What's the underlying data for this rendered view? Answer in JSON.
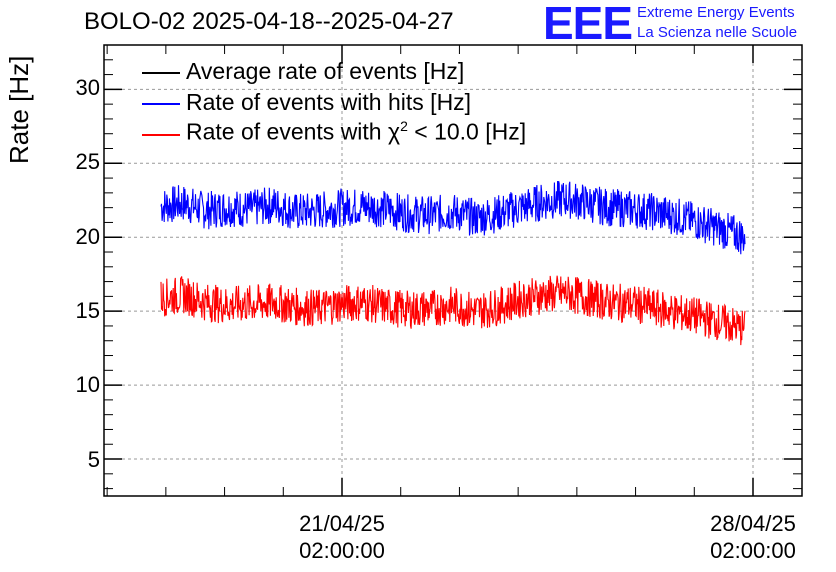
{
  "chart_data": {
    "type": "line",
    "title": "BOLO-02 2025-04-18--2025-04-27",
    "ylabel": "Rate [Hz]",
    "xlabel": "",
    "ylim": [
      2.5,
      33
    ],
    "y_ticks": [
      5,
      10,
      15,
      20,
      25,
      30
    ],
    "y_tick_labels": [
      "5",
      "10",
      "15",
      "20",
      "25",
      "30"
    ],
    "x_tick_labels": [
      {
        "date": "21/04/25",
        "time": "02:00:00"
      },
      {
        "date": "28/04/25",
        "time": "02:00:00"
      }
    ],
    "grid": true,
    "legend_position": "top-left",
    "series": [
      {
        "name": "Average rate of events [Hz]",
        "color": "#000000",
        "values": []
      },
      {
        "name": "Rate of events with hits [Hz]",
        "color": "#0000ff",
        "values": [
          22.1,
          22.3,
          21.8,
          22.0,
          21.9,
          22.2,
          21.7,
          21.8,
          22.0,
          22.1,
          21.9,
          21.6,
          21.5,
          21.7,
          21.3,
          21.6,
          22.0,
          22.4,
          22.6,
          22.3,
          22.0,
          21.9,
          21.7,
          21.4,
          21.0,
          20.5,
          20.0
        ]
      },
      {
        "name": "Rate of events with χ² < 10.0 [Hz]",
        "color": "#ff0000",
        "values": [
          15.9,
          16.1,
          15.6,
          15.4,
          15.5,
          15.6,
          15.3,
          15.2,
          15.5,
          15.6,
          15.3,
          15.1,
          15.2,
          15.4,
          15.0,
          15.3,
          15.8,
          16.1,
          16.2,
          15.9,
          15.6,
          15.5,
          15.2,
          14.9,
          14.6,
          14.2,
          13.8
        ]
      }
    ],
    "legend": [
      {
        "label": "Average rate of events [Hz]",
        "color": "#000000"
      },
      {
        "label": "Rate of events with hits [Hz]",
        "color": "#0000ff"
      },
      {
        "label_pre": "Rate of events with χ",
        "label_sup": "2",
        "label_post": " < 10.0 [Hz]",
        "color": "#ff0000"
      }
    ]
  },
  "logo": {
    "mark": "EEE",
    "line1": "Extreme Energy Events",
    "line2": "La Scienza nelle Scuole",
    "color": "#1a1aff"
  }
}
